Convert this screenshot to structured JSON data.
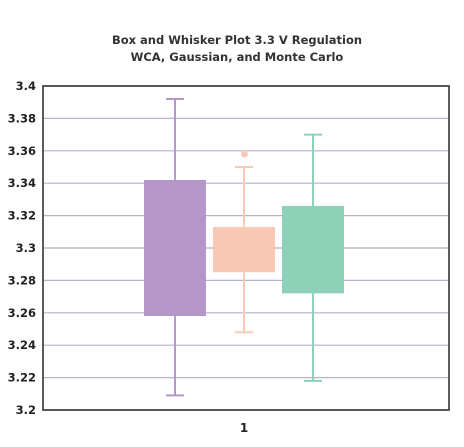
{
  "chart_data": {
    "type": "box",
    "title_lines": [
      "Box and Whisker Plot 3.3 V Regulation",
      "WCA, Gaussian, and Monte Carlo"
    ],
    "xlabel": "",
    "ylabel": "",
    "x_categories": [
      "1"
    ],
    "ylim": [
      3.2,
      3.4
    ],
    "y_ticks": [
      "3.2",
      "3.22",
      "3.24",
      "3.26",
      "3.28",
      "3.3",
      "3.32",
      "3.34",
      "3.36",
      "3.38",
      "3.4"
    ],
    "grid": true,
    "legend": "none",
    "series": [
      {
        "color": "#b497c8",
        "whisker_low": 3.209,
        "q1": 3.258,
        "q3": 3.342,
        "whisker_high": 3.392,
        "outliers": []
      },
      {
        "color": "#f8cab6",
        "whisker_low": 3.248,
        "q1": 3.285,
        "q3": 3.313,
        "whisker_high": 3.35,
        "outliers": [
          3.358
        ]
      },
      {
        "color": "#8ed1b8",
        "whisker_low": 3.218,
        "q1": 3.272,
        "q3": 3.326,
        "whisker_high": 3.37,
        "outliers": []
      }
    ]
  }
}
